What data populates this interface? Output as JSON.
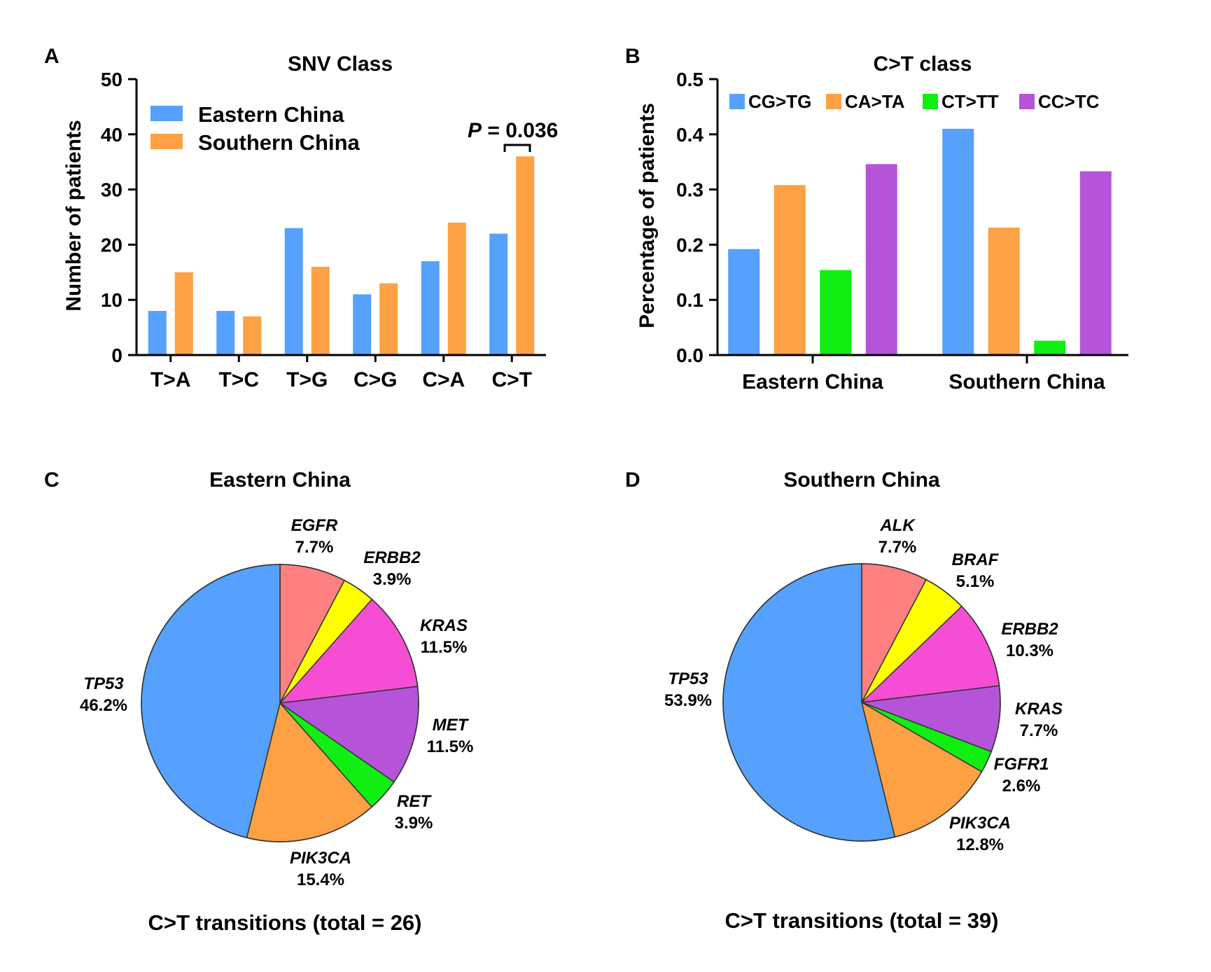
{
  "colors": {
    "eastern": "#55a1fd",
    "southern": "#fda144",
    "cg_tg": "#55a1fd",
    "ca_ta": "#fda144",
    "ct_tt": "#11ee11",
    "cc_tc": "#b554d8",
    "salmon": "#ff8080",
    "yellow": "#ffff00",
    "magenta": "#f54ed5",
    "purple": "#b554d8",
    "green": "#11ee11",
    "orange": "#fda144",
    "blue": "#55a1fd"
  },
  "panels": {
    "a": "A",
    "b": "B",
    "c": "C",
    "d": "D"
  },
  "chart_data": [
    {
      "id": "A",
      "type": "bar",
      "title": "SNV Class",
      "xlabel": "",
      "ylabel": "Number of patients",
      "ylim": [
        0,
        50
      ],
      "yticks": [
        "0",
        "10",
        "20",
        "30",
        "40",
        "50"
      ],
      "categories": [
        "T>A",
        "T>C",
        "T>G",
        "C>G",
        "C>A",
        "C>T"
      ],
      "series": [
        {
          "name": "Eastern China",
          "values": [
            8,
            8,
            23,
            11,
            17,
            22
          ]
        },
        {
          "name": "Southern China",
          "values": [
            15,
            7,
            16,
            13,
            24,
            36
          ]
        }
      ],
      "legend_position": "top-left",
      "annotation": {
        "label": "P",
        "text": " = 0.036",
        "category": "C>T"
      }
    },
    {
      "id": "B",
      "type": "bar",
      "title": "C>T class",
      "xlabel": "",
      "ylabel": "Percentage of patients",
      "ylim": [
        0,
        0.5
      ],
      "yticks": [
        "0.0",
        "0.1",
        "0.2",
        "0.3",
        "0.4",
        "0.5"
      ],
      "categories": [
        "Eastern China",
        "Southern China"
      ],
      "series": [
        {
          "name": "CG>TG",
          "values": [
            0.192,
            0.41
          ]
        },
        {
          "name": "CA>TA",
          "values": [
            0.308,
            0.231
          ]
        },
        {
          "name": "CT>TT",
          "values": [
            0.154,
            0.026
          ]
        },
        {
          "name": "CC>TC",
          "values": [
            0.346,
            0.333
          ]
        }
      ],
      "legend_position": "top"
    },
    {
      "id": "C",
      "type": "pie",
      "title": "Eastern China",
      "footer": "C>T transitions (total = 26)",
      "slices": [
        {
          "label": "EGFR",
          "pct_text": "7.7%",
          "value": 7.7,
          "color": "#ff8080"
        },
        {
          "label": "ERBB2",
          "pct_text": "3.9%",
          "value": 3.85,
          "color": "#ffff00"
        },
        {
          "label": "KRAS",
          "pct_text": "11.5%",
          "value": 11.54,
          "color": "#f54ed5"
        },
        {
          "label": "MET",
          "pct_text": "11.5%",
          "value": 11.54,
          "color": "#b554d8"
        },
        {
          "label": "RET",
          "pct_text": "3.9%",
          "value": 3.85,
          "color": "#11ee11"
        },
        {
          "label": "PIK3CA",
          "pct_text": "15.4%",
          "value": 15.38,
          "color": "#fda144"
        },
        {
          "label": "TP53",
          "pct_text": "46.2%",
          "value": 46.15,
          "color": "#55a1fd"
        }
      ]
    },
    {
      "id": "D",
      "type": "pie",
      "title": "Southern China",
      "footer": "C>T transitions (total = 39)",
      "slices": [
        {
          "label": "ALK",
          "pct_text": "7.7%",
          "value": 7.7,
          "color": "#ff8080"
        },
        {
          "label": "BRAF",
          "pct_text": "5.1%",
          "value": 5.13,
          "color": "#ffff00"
        },
        {
          "label": "ERBB2",
          "pct_text": "10.3%",
          "value": 10.26,
          "color": "#f54ed5"
        },
        {
          "label": "KRAS",
          "pct_text": "7.7%",
          "value": 7.69,
          "color": "#b554d8"
        },
        {
          "label": "FGFR1",
          "pct_text": "2.6%",
          "value": 2.56,
          "color": "#11ee11"
        },
        {
          "label": "PIK3CA",
          "pct_text": "12.8%",
          "value": 12.82,
          "color": "#fda144"
        },
        {
          "label": "TP53",
          "pct_text": "53.9%",
          "value": 53.85,
          "color": "#55a1fd"
        }
      ]
    }
  ]
}
